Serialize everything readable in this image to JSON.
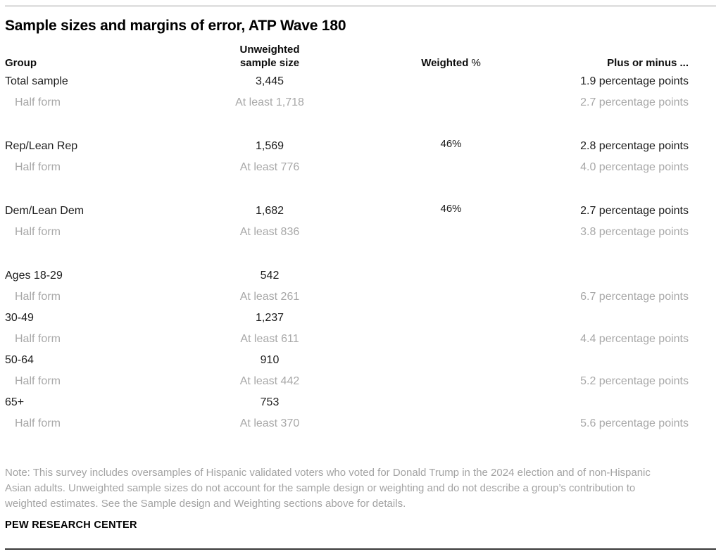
{
  "title": "Sample sizes and margins of error, ATP Wave 180",
  "colors": {
    "text": "#1d1d1d",
    "muted_text": "#a8a8a8",
    "note_text": "#a3a3a3",
    "rule_top": "#9b9b9b",
    "rule_bottom": "#3a3a3a",
    "background": "#ffffff"
  },
  "table": {
    "headers": {
      "group": "Group",
      "sample_line1": "Unweighted",
      "sample_line2": "sample size",
      "weighted_bold": "Weighted",
      "weighted_pct": "%",
      "margin": "Plus or minus ..."
    },
    "rows": [
      {
        "group": "Total sample",
        "sample": "3,445",
        "weighted": "",
        "margin": "1.9 percentage points",
        "muted": false
      },
      {
        "group": "Half form",
        "sample": "At least 1,718",
        "weighted": "",
        "margin": "2.7 percentage points",
        "muted": true
      },
      {
        "spacer": true
      },
      {
        "group": "Rep/Lean Rep",
        "sample": "1,569",
        "weighted": "46%",
        "margin": "2.8 percentage points",
        "muted": false
      },
      {
        "group": "Half form",
        "sample": "At least 776",
        "weighted": "",
        "margin": "4.0 percentage points",
        "muted": true
      },
      {
        "spacer": true
      },
      {
        "group": "Dem/Lean Dem",
        "sample": "1,682",
        "weighted": "46%",
        "margin": "2.7 percentage points",
        "muted": false
      },
      {
        "group": "Half form",
        "sample": "At least 836",
        "weighted": "",
        "margin": "3.8 percentage points",
        "muted": true
      },
      {
        "spacer": true
      },
      {
        "group": "Ages 18-29",
        "sample": "542",
        "weighted": "",
        "margin": "",
        "muted": false
      },
      {
        "group": "Half form",
        "sample": "At least 261",
        "weighted": "",
        "margin": "6.7 percentage points",
        "muted": true
      },
      {
        "group": "30-49",
        "sample": "1,237",
        "weighted": "",
        "margin": "",
        "muted": false
      },
      {
        "group": "Half form",
        "sample": "At least 611",
        "weighted": "",
        "margin": "4.4 percentage points",
        "muted": true
      },
      {
        "group": "50-64",
        "sample": "910",
        "weighted": "",
        "margin": "",
        "muted": false
      },
      {
        "group": "Half form",
        "sample": "At least 442",
        "weighted": "",
        "margin": "5.2 percentage points",
        "muted": true
      },
      {
        "group": "65+",
        "sample": "753",
        "weighted": "",
        "margin": "",
        "muted": false
      },
      {
        "group": "Half form",
        "sample": "At least 370",
        "weighted": "",
        "margin": "5.6 percentage points",
        "muted": true
      }
    ]
  },
  "note": {
    "lines": [
      "Note: This survey includes oversamples of Hispanic validated voters who voted for Donald Trump in the 2024 election and of non-Hispanic",
      "Asian adults. Unweighted sample sizes do not account for the sample design or weighting and do not describe a group’s contribution to",
      "weighted estimates. See the Sample design and Weighting sections above for details."
    ]
  },
  "footer": {
    "brand": "PEW RESEARCH CENTER"
  },
  "chart_data": {
    "type": "table",
    "title": "Sample sizes and margins of error, ATP Wave 180",
    "columns": [
      "Group",
      "Unweighted sample size",
      "Weighted %",
      "Plus or minus ..."
    ],
    "rows": [
      [
        "Total sample",
        "3,445",
        "",
        "1.9 percentage points"
      ],
      [
        "Half form",
        "At least 1,718",
        "",
        "2.7 percentage points"
      ],
      [
        "Rep/Lean Rep",
        "1,569",
        "46%",
        "2.8 percentage points"
      ],
      [
        "Half form",
        "At least 776",
        "",
        "4.0 percentage points"
      ],
      [
        "Dem/Lean Dem",
        "1,682",
        "46%",
        "2.7 percentage points"
      ],
      [
        "Half form",
        "At least 836",
        "",
        "3.8 percentage points"
      ],
      [
        "Ages 18-29",
        "542",
        "",
        ""
      ],
      [
        "Half form",
        "At least 261",
        "",
        "6.7 percentage points"
      ],
      [
        "30-49",
        "1,237",
        "",
        ""
      ],
      [
        "Half form",
        "At least 611",
        "",
        "4.4 percentage points"
      ],
      [
        "50-64",
        "910",
        "",
        ""
      ],
      [
        "Half form",
        "At least 442",
        "",
        "5.2 percentage points"
      ],
      [
        "65+",
        "753",
        "",
        ""
      ],
      [
        "Half form",
        "At least 370",
        "",
        "5.6 percentage points"
      ]
    ],
    "notes": "Survey oversamples Hispanic validated voters who voted for Donald Trump in the 2024 election and non-Hispanic Asian adults.",
    "source": "PEW RESEARCH CENTER"
  }
}
